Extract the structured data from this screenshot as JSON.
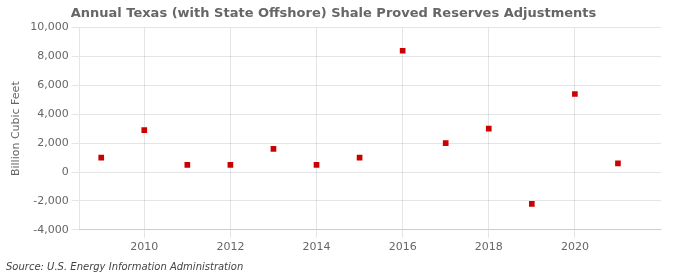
{
  "chart_data": {
    "type": "scatter",
    "title": "Annual Texas (with State Offshore) Shale Proved Reserves Adjustments",
    "ylabel": "Billion Cubic Feet",
    "annotations": [
      {
        "text": "Source: U.S. Energy Information Administration"
      }
    ],
    "x": [
      2009,
      2010,
      2011,
      2012,
      2013,
      2014,
      2015,
      2016,
      2017,
      2018,
      2019,
      2020,
      2021
    ],
    "values": [
      1000,
      2900,
      500,
      500,
      1600,
      500,
      1000,
      8400,
      2000,
      3000,
      -2200,
      5400,
      600
    ],
    "color": "#cc0000",
    "marker": "square",
    "xlim": [
      2008.5,
      2022.0
    ],
    "xticks": [
      2010,
      2012,
      2014,
      2016,
      2018,
      2020
    ],
    "ylim": [
      -4000,
      10000
    ],
    "yticks": [
      {
        "value": -4000,
        "label": "-4,000"
      },
      {
        "value": -2000,
        "label": "-2,000"
      },
      0,
      {
        "value": 2000,
        "label": "2,000"
      },
      {
        "value": 4000,
        "label": "4,000"
      },
      {
        "value": 6000,
        "label": "6,000"
      },
      {
        "value": 8000,
        "label": "8,000"
      },
      {
        "value": 10000,
        "label": "10,000"
      }
    ],
    "grid": true
  }
}
